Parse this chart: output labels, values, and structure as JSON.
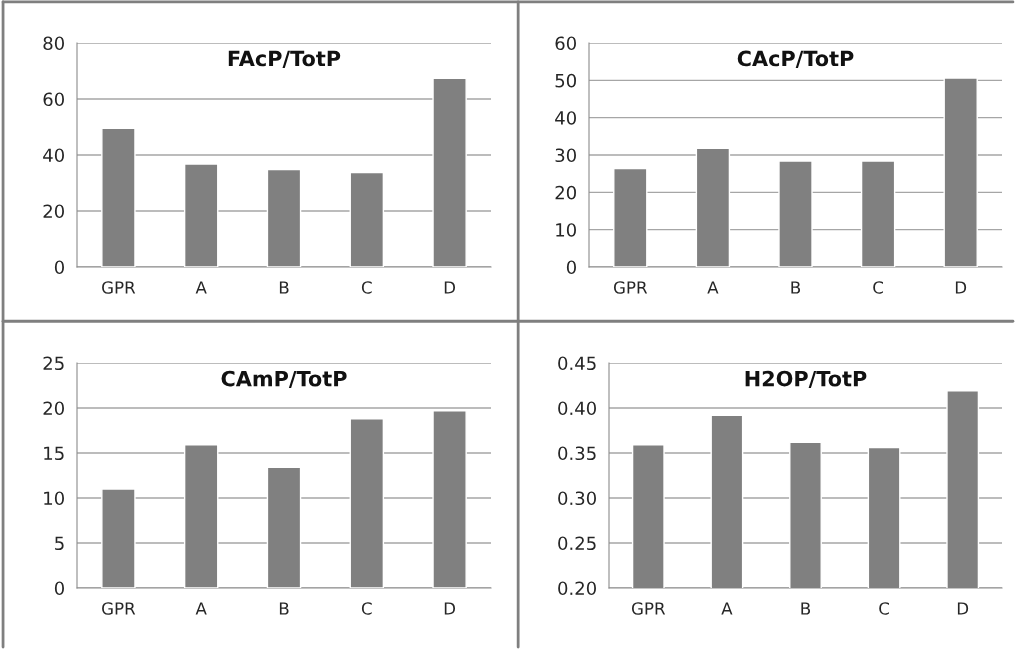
{
  "chart_data": [
    {
      "type": "bar",
      "title": "FAcP/TotP",
      "categories": [
        "GPR",
        "A",
        "B",
        "C",
        "D"
      ],
      "values": [
        49.5,
        36.8,
        34.8,
        33.7,
        67.4
      ],
      "color": "#808080",
      "ylim": [
        0,
        80
      ],
      "yticks": [
        0,
        20,
        40,
        60,
        80
      ],
      "grid": "y"
    },
    {
      "type": "bar",
      "title": "CAcP/TotP",
      "categories": [
        "GPR",
        "A",
        "B",
        "C",
        "D"
      ],
      "values": [
        26.4,
        31.8,
        28.4,
        28.4,
        50.6
      ],
      "color": "#808080",
      "ylim": [
        0,
        60
      ],
      "yticks": [
        0,
        10,
        20,
        30,
        40,
        50,
        60
      ],
      "grid": "y"
    },
    {
      "type": "bar",
      "title": "CAmP/TotP",
      "categories": [
        "GPR",
        "A",
        "B",
        "C",
        "D"
      ],
      "values": [
        11.0,
        15.9,
        13.4,
        18.8,
        19.7
      ],
      "color": "#808080",
      "ylim": [
        0,
        25
      ],
      "yticks": [
        0,
        5,
        10,
        15,
        20,
        25
      ],
      "grid": "y"
    },
    {
      "type": "bar",
      "title": "H2OP/TotP",
      "categories": [
        "GPR",
        "A",
        "B",
        "C",
        "D"
      ],
      "values": [
        0.359,
        0.392,
        0.362,
        0.356,
        0.419
      ],
      "color": "#808080",
      "ylim": [
        0.2,
        0.45
      ],
      "yticks": [
        {
          "value": 0.2,
          "label": "0.20"
        },
        {
          "value": 0.25,
          "label": "0.25"
        },
        {
          "value": 0.3,
          "label": "0.30"
        },
        {
          "value": 0.35,
          "label": "0.35"
        },
        {
          "value": 0.4,
          "label": "0.40"
        },
        {
          "value": 0.45,
          "label": "0.45"
        }
      ],
      "grid": "y"
    }
  ]
}
